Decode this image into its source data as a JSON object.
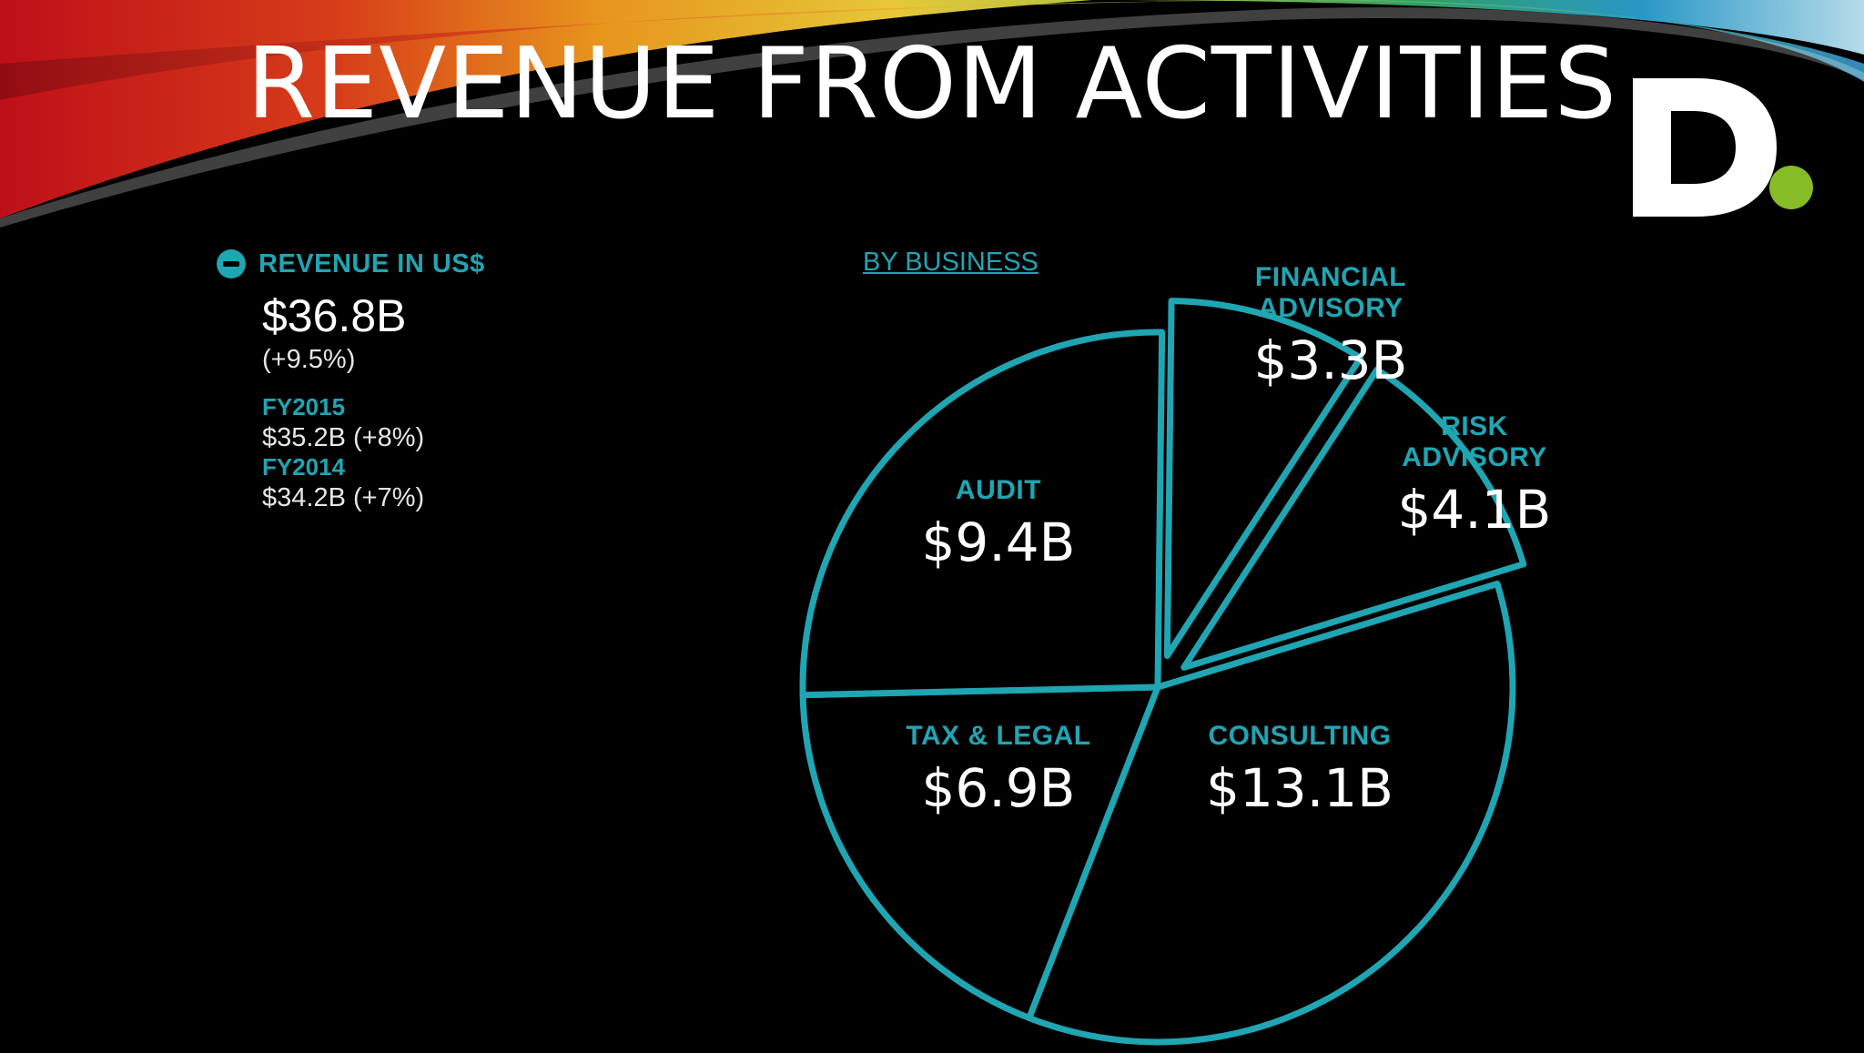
{
  "slide": {
    "title": "REVENUE FROM ACTIVITIES"
  },
  "revenue_panel": {
    "label": "REVENUE IN US$",
    "total": "$36.8B",
    "growth": "(+9.5%)",
    "history": [
      {
        "year": "FY2015",
        "value": "$35.2B (+8%)"
      },
      {
        "year": "FY2014",
        "value": "$34.2B (+7%)"
      }
    ]
  },
  "tab": {
    "by_business": "BY BUSINESS"
  },
  "logo": {
    "letter": "D",
    "dot_color": "#86bc25"
  },
  "colors": {
    "accent": "#20a5b3",
    "background": "#000000",
    "text": "#ffffff"
  },
  "chart_data": {
    "type": "pie",
    "title": "",
    "unit": "B",
    "currency": "$",
    "slices": [
      {
        "name": "FINANCIAL ADVISORY",
        "name_lines": [
          "FINANCIAL",
          "ADVISORY"
        ],
        "value": 3.3,
        "label": "$3.3B",
        "exploded": true
      },
      {
        "name": "RISK ADVISORY",
        "name_lines": [
          "RISK",
          "ADVISORY"
        ],
        "value": 4.1,
        "label": "$4.1B",
        "exploded": true
      },
      {
        "name": "CONSULTING",
        "name_lines": [
          "CONSULTING"
        ],
        "value": 13.1,
        "label": "$13.1B",
        "exploded": false
      },
      {
        "name": "TAX & LEGAL",
        "name_lines": [
          "TAX & LEGAL"
        ],
        "value": 6.9,
        "label": "$6.9B",
        "exploded": false
      },
      {
        "name": "AUDIT",
        "name_lines": [
          "AUDIT"
        ],
        "value": 9.4,
        "label": "$9.4B",
        "exploded": false
      }
    ]
  }
}
